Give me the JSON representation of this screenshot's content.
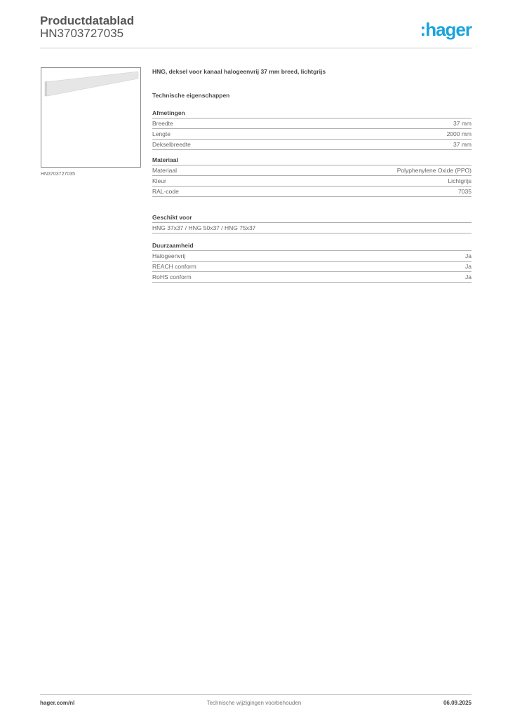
{
  "header": {
    "title": "Productdatablad",
    "code": "HN3703727035",
    "logo": ":hager"
  },
  "product": {
    "image_caption": "HN3703727035",
    "description": "HNG, deksel voor kanaal halogeenvrij 37 mm breed, lichtgrijs"
  },
  "tech_heading": "Technische eigenschappen",
  "sections": [
    {
      "title": "Afmetingen",
      "rows": [
        [
          "Breedte",
          "37 mm"
        ],
        [
          "Lengte",
          "2000 mm"
        ],
        [
          "Dekselbreedte",
          "37 mm"
        ]
      ]
    },
    {
      "title": "Materiaal",
      "rows": [
        [
          "Materiaal",
          "Polyphenylene Oxide (PPO)"
        ],
        [
          "Kleur",
          "Lichtgrijs"
        ],
        [
          "RAL-code",
          "7035"
        ]
      ]
    },
    {
      "title": "Geschikt voor",
      "rows": [
        [
          "HNG 37x37 / HNG 50x37 / HNG 75x37",
          ""
        ]
      ]
    },
    {
      "title": "Duurzaamheid",
      "rows": [
        [
          "Halogeenvrij",
          "Ja"
        ],
        [
          "REACH conform",
          "Ja"
        ],
        [
          "RoHS conform",
          "Ja"
        ]
      ]
    }
  ],
  "footer": {
    "website": "hager.com/nl",
    "notice": "Technische wijzigingen voorbehouden",
    "date": "06.09.2025"
  },
  "colors": {
    "brand": "#1aa3dc"
  }
}
